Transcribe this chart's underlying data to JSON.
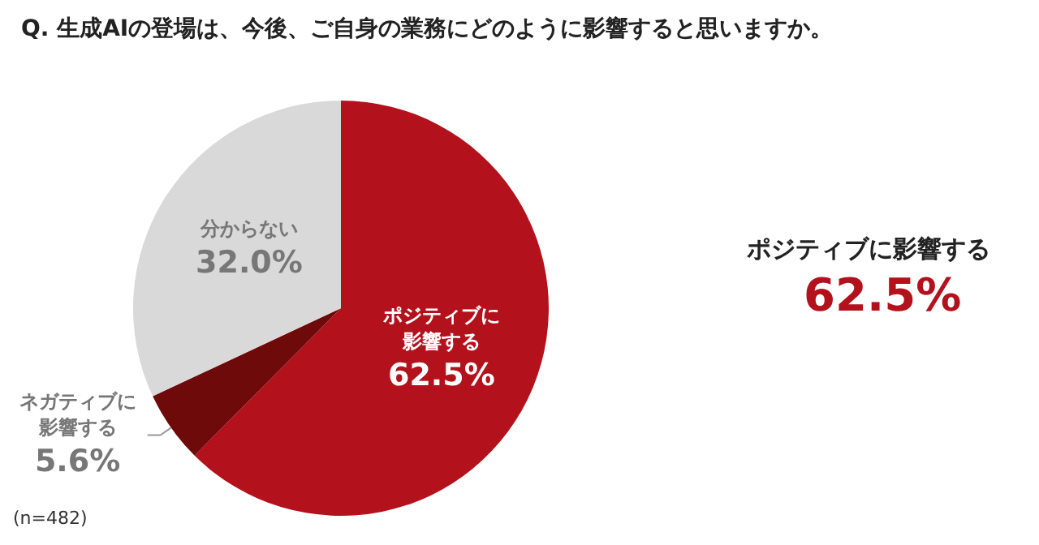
{
  "chart_data": {
    "type": "pie",
    "title": "Q. 生成AIの登場は、今後、ご自身の業務にどのように影響すると思いますか。",
    "categories": [
      "ポジティブに影響する",
      "ネガティブに影響する",
      "分からない"
    ],
    "values": [
      62.5,
      5.6,
      32.0
    ],
    "colors": [
      "#b3121c",
      "#6e0a0a",
      "#d9d9d9"
    ],
    "value_labels": [
      "62.5%",
      "5.6%",
      "32.0%"
    ],
    "annotations": [
      "ポジティブに影響する",
      "62.5%",
      "(n=482)"
    ],
    "legend": false
  }
}
